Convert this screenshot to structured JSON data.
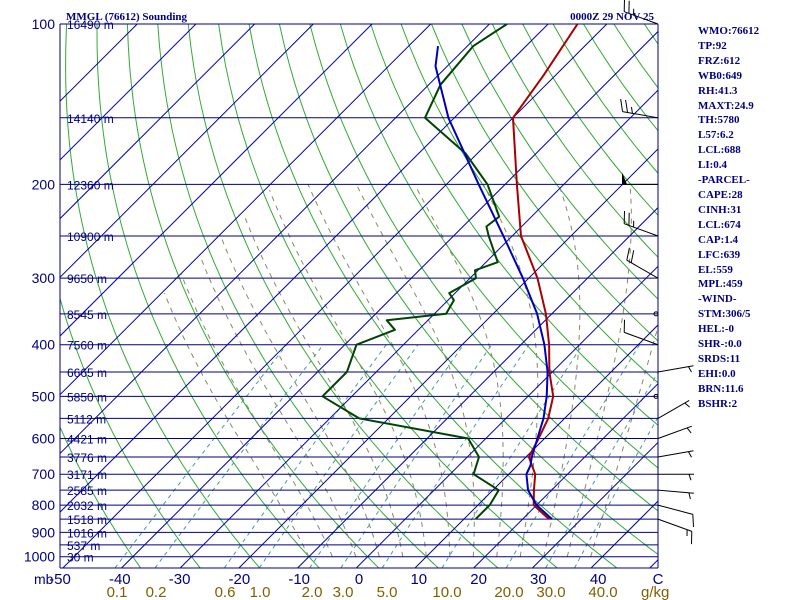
{
  "chart_data": {
    "type": "skew-t",
    "title": "MMGL (76612) Sounding",
    "timestamp": "0000Z 29 NOV 25",
    "pressure_unit_label": "mb",
    "temperature_ticks": [
      "-50",
      "-40",
      "-30",
      "-20",
      "-10",
      "0",
      "10",
      "20",
      "30",
      "40",
      "C"
    ],
    "mixing_ratio_unit": "g/kg",
    "mixing_ratio_ticks": [
      "0.1",
      "0.2",
      "0.6",
      "1.0",
      "2.0",
      "3.0",
      "5.0",
      "10.0",
      "20.0",
      "30.0",
      "40.0"
    ],
    "pressure_levels": [
      {
        "p": 100,
        "label": "100",
        "height": "16490 m"
      },
      {
        "p": 150,
        "label": "",
        "height": "14140 m"
      },
      {
        "p": 200,
        "label": "200",
        "height": "12360 m"
      },
      {
        "p": 250,
        "label": "",
        "height": "10900 m"
      },
      {
        "p": 300,
        "label": "300",
        "height": "9650 m"
      },
      {
        "p": 350,
        "label": "",
        "height": "8545 m"
      },
      {
        "p": 400,
        "label": "400",
        "height": "7560 m"
      },
      {
        "p": 450,
        "label": "",
        "height": "6665 m"
      },
      {
        "p": 500,
        "label": "500",
        "height": "5850 m"
      },
      {
        "p": 550,
        "label": "",
        "height": "5112 m"
      },
      {
        "p": 600,
        "label": "600",
        "height": "4421 m"
      },
      {
        "p": 650,
        "label": "",
        "height": "3776 m"
      },
      {
        "p": 700,
        "label": "700",
        "height": "3171 m"
      },
      {
        "p": 750,
        "label": "",
        "height": "2585 m"
      },
      {
        "p": 800,
        "label": "800",
        "height": "2032 m"
      },
      {
        "p": 850,
        "label": "",
        "height": "1518 m"
      },
      {
        "p": 900,
        "label": "900",
        "height": "1016 m"
      },
      {
        "p": 950,
        "label": "",
        "height": "537 m"
      },
      {
        "p": 1000,
        "label": "1000",
        "height": "30 m"
      }
    ],
    "series": [
      {
        "name": "Temperature",
        "color": "#aa0000",
        "points": [
          [
            850,
            24.5
          ],
          [
            800,
            19.5
          ],
          [
            750,
            17
          ],
          [
            700,
            14.5
          ],
          [
            650,
            10.5
          ],
          [
            600,
            9
          ],
          [
            550,
            7.2
          ],
          [
            500,
            4.3
          ],
          [
            450,
            -0.5
          ],
          [
            400,
            -5.2
          ],
          [
            350,
            -11
          ],
          [
            300,
            -18.5
          ],
          [
            250,
            -28.5
          ],
          [
            200,
            -38
          ],
          [
            150,
            -50
          ],
          [
            125,
            -52
          ],
          [
            100,
            -55
          ]
        ]
      },
      {
        "name": "Dewpoint",
        "color": "#004400",
        "points": [
          [
            850,
            12
          ],
          [
            800,
            12
          ],
          [
            750,
            11
          ],
          [
            700,
            4
          ],
          [
            650,
            2
          ],
          [
            600,
            -3
          ],
          [
            550,
            -25
          ],
          [
            500,
            -35
          ],
          [
            450,
            -35
          ],
          [
            400,
            -38
          ],
          [
            375,
            -34
          ],
          [
            360,
            -37
          ],
          [
            350,
            -28
          ],
          [
            330,
            -29
          ],
          [
            320,
            -31
          ],
          [
            300,
            -29
          ],
          [
            290,
            -30.5
          ],
          [
            280,
            -28
          ],
          [
            250,
            -34
          ],
          [
            240,
            -36
          ],
          [
            230,
            -35.5
          ],
          [
            200,
            -43
          ],
          [
            175,
            -52
          ],
          [
            150,
            -65
          ],
          [
            130,
            -68
          ],
          [
            110,
            -69
          ],
          [
            100,
            -67
          ]
        ]
      },
      {
        "name": "Parcel",
        "color": "#0000bb",
        "points": [
          [
            850,
            25
          ],
          [
            800,
            20
          ],
          [
            750,
            16
          ],
          [
            700,
            13
          ],
          [
            674,
            12.2
          ],
          [
            650,
            11
          ],
          [
            600,
            8.8
          ],
          [
            550,
            6.4
          ],
          [
            500,
            3.2
          ],
          [
            450,
            -0.8
          ],
          [
            400,
            -6
          ],
          [
            350,
            -12.5
          ],
          [
            300,
            -21
          ],
          [
            250,
            -31.5
          ],
          [
            200,
            -44.5
          ],
          [
            150,
            -61
          ],
          [
            120,
            -72
          ],
          [
            110,
            -75
          ]
        ]
      }
    ],
    "winds": [
      {
        "p": 850,
        "dir": 110,
        "spd": 15
      },
      {
        "p": 800,
        "dir": 105,
        "spd": 10
      },
      {
        "p": 750,
        "dir": 95,
        "spd": 5
      },
      {
        "p": 700,
        "dir": 90,
        "spd": 5
      },
      {
        "p": 650,
        "dir": 80,
        "spd": 5
      },
      {
        "p": 600,
        "dir": 70,
        "spd": 5
      },
      {
        "p": 550,
        "dir": 60,
        "spd": 5
      },
      {
        "p": 500,
        "dir": 90,
        "spd": 0
      },
      {
        "p": 450,
        "dir": 80,
        "spd": 5
      },
      {
        "p": 400,
        "dir": 290,
        "spd": 10
      },
      {
        "p": 350,
        "dir": 0,
        "spd": 0
      },
      {
        "p": 300,
        "dir": 300,
        "spd": 20
      },
      {
        "p": 250,
        "dir": 290,
        "spd": 25
      },
      {
        "p": 200,
        "dir": 270,
        "spd": 50
      },
      {
        "p": 150,
        "dir": 280,
        "spd": 25
      },
      {
        "p": 100,
        "dir": 290,
        "spd": 25
      }
    ],
    "grid": true,
    "legend": "none"
  },
  "indices": [
    "WMO:76612",
    "TP:92",
    "FRZ:612",
    "WB0:649",
    "RH:41.3",
    "MAXT:24.9",
    "TH:5780",
    "L57:6.2",
    "LCL:688",
    "LI:0.4",
    "-PARCEL-",
    "CAPE:28",
    "CINH:31",
    "LCL:674",
    "CAP:1.4",
    "LFC:639",
    "EL:559",
    "MPL:459",
    "-WIND-",
    "STM:306/5",
    "HEL:-0",
    "SHR-:0.0",
    "SRDS:11",
    "EHI:0.0",
    "BRN:11.6",
    "BSHR:2"
  ]
}
